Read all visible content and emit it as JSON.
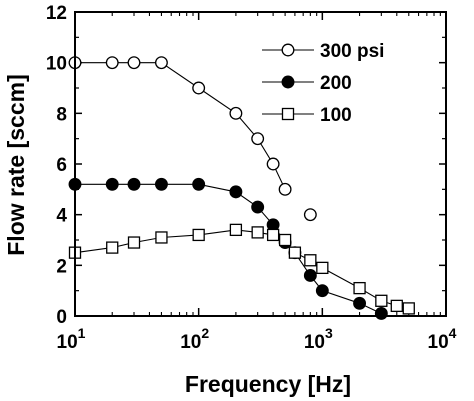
{
  "chart_data": {
    "type": "scatter",
    "title": "",
    "xlabel": "Frequency [Hz]",
    "ylabel": "Flow rate [sccm]",
    "xscale": "log",
    "xlim": [
      10,
      10000
    ],
    "ylim": [
      0,
      12
    ],
    "x_ticks": [
      {
        "value": 10,
        "base": "10",
        "exp": "1"
      },
      {
        "value": 100,
        "base": "10",
        "exp": "2"
      },
      {
        "value": 1000,
        "base": "10",
        "exp": "3"
      },
      {
        "value": 10000,
        "base": "10",
        "exp": "4"
      }
    ],
    "y_ticks": [
      0,
      2,
      4,
      6,
      8,
      10,
      12
    ],
    "grid": false,
    "legend_position": "top-right",
    "series": [
      {
        "name": "300 psi",
        "marker": "open-circle",
        "connected": true,
        "points": [
          [
            10,
            10.0
          ],
          [
            20,
            10.0
          ],
          [
            30,
            10.0
          ],
          [
            50,
            10.0
          ],
          [
            100,
            9.0
          ],
          [
            200,
            8.0
          ],
          [
            300,
            7.0
          ],
          [
            400,
            6.0
          ],
          [
            500,
            5.0
          ]
        ]
      },
      {
        "name": "300 psi",
        "marker": "open-circle",
        "connected": false,
        "points": [
          [
            800,
            4.0
          ]
        ]
      },
      {
        "name": "200",
        "marker": "filled-circle",
        "connected": true,
        "points": [
          [
            10,
            5.2
          ],
          [
            20,
            5.2
          ],
          [
            30,
            5.2
          ],
          [
            50,
            5.2
          ],
          [
            100,
            5.2
          ],
          [
            200,
            4.9
          ],
          [
            300,
            4.3
          ],
          [
            400,
            3.6
          ],
          [
            500,
            2.9
          ],
          [
            600,
            2.5
          ],
          [
            800,
            1.6
          ],
          [
            1000,
            1.0
          ],
          [
            2000,
            0.5
          ],
          [
            3000,
            0.1
          ]
        ]
      },
      {
        "name": "100",
        "marker": "open-square",
        "connected": true,
        "points": [
          [
            10,
            2.5
          ],
          [
            20,
            2.7
          ],
          [
            30,
            2.9
          ],
          [
            50,
            3.1
          ],
          [
            100,
            3.2
          ],
          [
            200,
            3.4
          ],
          [
            300,
            3.3
          ],
          [
            400,
            3.2
          ],
          [
            500,
            3.0
          ],
          [
            600,
            2.5
          ],
          [
            800,
            2.2
          ],
          [
            1000,
            1.9
          ],
          [
            2000,
            1.1
          ],
          [
            3000,
            0.6
          ],
          [
            4000,
            0.4
          ],
          [
            5000,
            0.3
          ]
        ]
      }
    ],
    "legend": [
      {
        "label": "300 psi",
        "marker": "open-circle"
      },
      {
        "label": "200",
        "marker": "filled-circle"
      },
      {
        "label": "100",
        "marker": "open-square"
      }
    ]
  }
}
